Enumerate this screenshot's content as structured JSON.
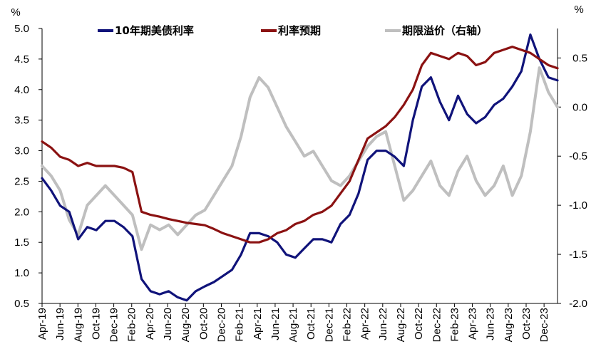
{
  "chart_data": {
    "type": "line",
    "left_unit": "%",
    "right_unit": "%",
    "y_left": {
      "min": 0.5,
      "max": 5.0,
      "ticks": [
        "5.0",
        "4.5",
        "4.0",
        "3.5",
        "3.0",
        "2.5",
        "2.0",
        "1.5",
        "1.0",
        "0.5"
      ]
    },
    "y_right": {
      "min": -2.0,
      "max": 0.8,
      "ticks": [
        "0.5",
        "0.0",
        "-0.5",
        "-1.0",
        "-1.5",
        "-2.0"
      ]
    },
    "x_ticks": [
      "Apr-19",
      "Jun-19",
      "Aug-19",
      "Oct-19",
      "Dec-19",
      "Feb-20",
      "Apr-20",
      "Jun-20",
      "Aug-20",
      "Oct-20",
      "Dec-20",
      "Feb-21",
      "Apr-21",
      "Jun-21",
      "Aug-21",
      "Oct-21",
      "Dec-21",
      "Feb-22",
      "Apr-22",
      "Jun-22",
      "Aug-22",
      "Oct-22",
      "Dec-22",
      "Feb-23",
      "Apr-23",
      "Jun-23",
      "Aug-23",
      "Oct-23",
      "Dec-23"
    ],
    "series": [
      {
        "name": "10年期美债利率",
        "axis": "left",
        "color": "#10137a",
        "x": [
          "2019-04",
          "2019-05",
          "2019-06",
          "2019-07",
          "2019-08",
          "2019-09",
          "2019-10",
          "2019-11",
          "2019-12",
          "2020-01",
          "2020-02",
          "2020-03",
          "2020-04",
          "2020-05",
          "2020-06",
          "2020-07",
          "2020-08",
          "2020-09",
          "2020-10",
          "2020-11",
          "2020-12",
          "2021-01",
          "2021-02",
          "2021-03",
          "2021-04",
          "2021-05",
          "2021-06",
          "2021-07",
          "2021-08",
          "2021-09",
          "2021-10",
          "2021-11",
          "2021-12",
          "2022-01",
          "2022-02",
          "2022-03",
          "2022-04",
          "2022-05",
          "2022-06",
          "2022-07",
          "2022-08",
          "2022-09",
          "2022-10",
          "2022-11",
          "2022-12",
          "2023-01",
          "2023-02",
          "2023-03",
          "2023-04",
          "2023-05",
          "2023-06",
          "2023-07",
          "2023-08",
          "2023-09",
          "2023-10",
          "2023-11",
          "2023-12",
          "2024-01"
        ],
        "values": [
          2.55,
          2.35,
          2.1,
          2.0,
          1.55,
          1.75,
          1.7,
          1.85,
          1.85,
          1.75,
          1.6,
          0.9,
          0.7,
          0.65,
          0.7,
          0.6,
          0.55,
          0.7,
          0.78,
          0.85,
          0.95,
          1.05,
          1.3,
          1.65,
          1.65,
          1.6,
          1.5,
          1.3,
          1.25,
          1.4,
          1.55,
          1.55,
          1.5,
          1.8,
          1.95,
          2.3,
          2.85,
          3.0,
          3.0,
          2.9,
          2.75,
          3.5,
          4.05,
          4.2,
          3.8,
          3.5,
          3.9,
          3.6,
          3.45,
          3.55,
          3.75,
          3.85,
          4.05,
          4.3,
          4.9,
          4.5,
          4.2,
          4.15
        ]
      },
      {
        "name": "利率预期",
        "axis": "left",
        "color": "#8b1212",
        "x": [
          "2019-04",
          "2019-05",
          "2019-06",
          "2019-07",
          "2019-08",
          "2019-09",
          "2019-10",
          "2019-11",
          "2019-12",
          "2020-01",
          "2020-02",
          "2020-03",
          "2020-04",
          "2020-05",
          "2020-06",
          "2020-07",
          "2020-08",
          "2020-09",
          "2020-10",
          "2020-11",
          "2020-12",
          "2021-01",
          "2021-02",
          "2021-03",
          "2021-04",
          "2021-05",
          "2021-06",
          "2021-07",
          "2021-08",
          "2021-09",
          "2021-10",
          "2021-11",
          "2021-12",
          "2022-01",
          "2022-02",
          "2022-03",
          "2022-04",
          "2022-05",
          "2022-06",
          "2022-07",
          "2022-08",
          "2022-09",
          "2022-10",
          "2022-11",
          "2022-12",
          "2023-01",
          "2023-02",
          "2023-03",
          "2023-04",
          "2023-05",
          "2023-06",
          "2023-07",
          "2023-08",
          "2023-09",
          "2023-10",
          "2023-11",
          "2023-12",
          "2024-01"
        ],
        "values": [
          3.15,
          3.05,
          2.9,
          2.85,
          2.75,
          2.8,
          2.75,
          2.75,
          2.75,
          2.72,
          2.65,
          2.0,
          1.95,
          1.92,
          1.88,
          1.85,
          1.82,
          1.8,
          1.78,
          1.72,
          1.65,
          1.6,
          1.55,
          1.5,
          1.5,
          1.55,
          1.65,
          1.7,
          1.8,
          1.85,
          1.95,
          2.0,
          2.1,
          2.3,
          2.5,
          2.85,
          3.2,
          3.3,
          3.4,
          3.55,
          3.75,
          4.0,
          4.4,
          4.6,
          4.55,
          4.5,
          4.6,
          4.55,
          4.4,
          4.45,
          4.6,
          4.65,
          4.7,
          4.65,
          4.6,
          4.5,
          4.4,
          4.35
        ]
      },
      {
        "name": "期限溢价（右轴）",
        "axis": "right",
        "color": "#bfbfbf",
        "x": [
          "2019-04",
          "2019-05",
          "2019-06",
          "2019-07",
          "2019-08",
          "2019-09",
          "2019-10",
          "2019-11",
          "2019-12",
          "2020-01",
          "2020-02",
          "2020-03",
          "2020-04",
          "2020-05",
          "2020-06",
          "2020-07",
          "2020-08",
          "2020-09",
          "2020-10",
          "2020-11",
          "2020-12",
          "2021-01",
          "2021-02",
          "2021-03",
          "2021-04",
          "2021-05",
          "2021-06",
          "2021-07",
          "2021-08",
          "2021-09",
          "2021-10",
          "2021-11",
          "2021-12",
          "2022-01",
          "2022-02",
          "2022-03",
          "2022-04",
          "2022-05",
          "2022-06",
          "2022-07",
          "2022-08",
          "2022-09",
          "2022-10",
          "2022-11",
          "2022-12",
          "2023-01",
          "2023-02",
          "2023-03",
          "2023-04",
          "2023-05",
          "2023-06",
          "2023-07",
          "2023-08",
          "2023-09",
          "2023-10",
          "2023-11",
          "2023-12",
          "2024-01"
        ],
        "values": [
          -0.6,
          -0.7,
          -0.85,
          -1.15,
          -1.3,
          -1.0,
          -0.9,
          -0.8,
          -0.9,
          -1.0,
          -1.1,
          -1.45,
          -1.2,
          -1.25,
          -1.2,
          -1.3,
          -1.2,
          -1.1,
          -1.05,
          -0.9,
          -0.75,
          -0.6,
          -0.3,
          0.1,
          0.3,
          0.2,
          0.0,
          -0.2,
          -0.35,
          -0.5,
          -0.45,
          -0.6,
          -0.75,
          -0.8,
          -0.7,
          -0.55,
          -0.4,
          -0.3,
          -0.25,
          -0.6,
          -0.95,
          -0.85,
          -0.7,
          -0.55,
          -0.8,
          -0.9,
          -0.65,
          -0.5,
          -0.75,
          -0.9,
          -0.8,
          -0.6,
          -0.9,
          -0.7,
          -0.25,
          0.4,
          0.15,
          0.0
        ]
      }
    ]
  }
}
